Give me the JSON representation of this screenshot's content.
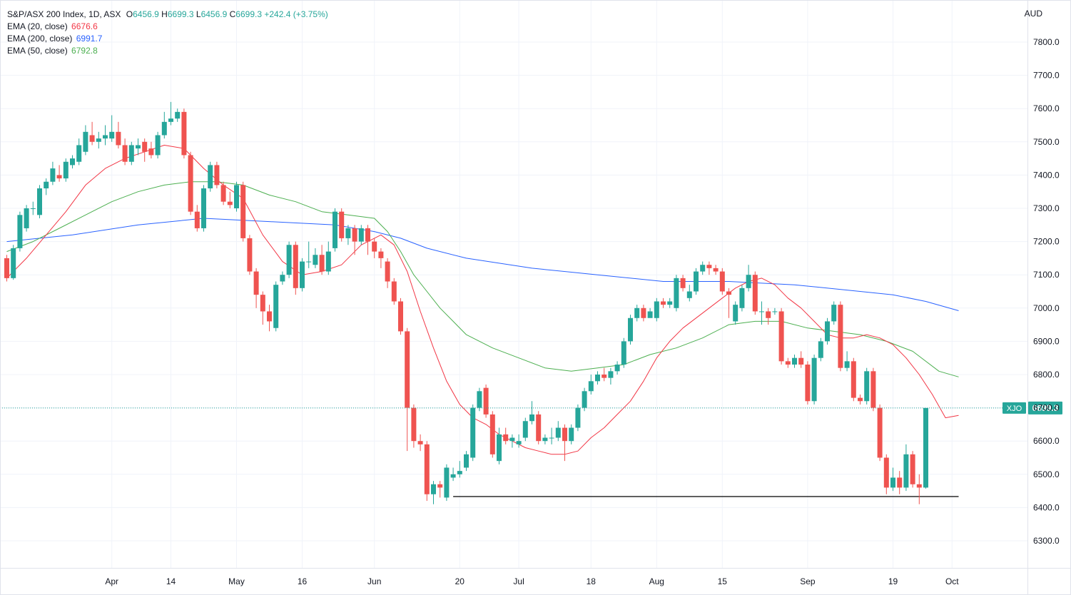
{
  "legend": {
    "symbol": "S&P/ASX 200 Index, 1D, ASX",
    "o_label": "O",
    "o": "6456.9",
    "h_label": "H",
    "h": "6699.3",
    "l_label": "L",
    "l": "6456.9",
    "c_label": "C",
    "c": "6699.3",
    "chg": "+242.4 (+3.75%)",
    "ema20_label": "EMA (20, close)",
    "ema20_value": "6676.6",
    "ema200_label": "EMA (200, close)",
    "ema200_value": "6991.7",
    "ema50_label": "EMA (50, close)",
    "ema50_value": "6792.8"
  },
  "currency": "AUD",
  "colors": {
    "up": "#26a69a",
    "down": "#ef5350",
    "ema20": "#f23645",
    "ema200": "#2962ff",
    "ema50": "#4caf50",
    "grid": "#f0f3fa",
    "price_tag": "#26a69a"
  },
  "chart_data": {
    "type": "candlestick",
    "ylim": [
      6200,
      7850
    ],
    "y_ticks": [
      "7800.0",
      "7700.0",
      "7600.0",
      "7500.0",
      "7400.0",
      "7300.0",
      "7200.0",
      "7100.0",
      "7000.0",
      "6900.0",
      "6800.0",
      "6700.0",
      "6600.0",
      "6500.0",
      "6400.0",
      "6300.0"
    ],
    "x_ticks": [
      {
        "label": "Apr",
        "index": 16
      },
      {
        "label": "14",
        "index": 25
      },
      {
        "label": "May",
        "index": 35
      },
      {
        "label": "16",
        "index": 45
      },
      {
        "label": "Jun",
        "index": 56
      },
      {
        "label": "20",
        "index": 69
      },
      {
        "label": "Jul",
        "index": 78
      },
      {
        "label": "18",
        "index": 89
      },
      {
        "label": "Aug",
        "index": 99
      },
      {
        "label": "15",
        "index": 109
      },
      {
        "label": "Sep",
        "index": 122
      },
      {
        "label": "19",
        "index": 135
      },
      {
        "label": "Oct",
        "index": 144
      }
    ],
    "support_level": 6433,
    "support_from_index": 68,
    "support_to_index": 145,
    "last_price": 6699.3,
    "last_price_label": "XJO",
    "last_price_text": "6699.3",
    "candles": [
      [
        7150,
        7090,
        7160,
        7080
      ],
      [
        7090,
        7180,
        7190,
        7085
      ],
      [
        7180,
        7280,
        7290,
        7170
      ],
      [
        7240,
        7300,
        7310,
        7230
      ],
      [
        7300,
        7300,
        7320,
        7280
      ],
      [
        7280,
        7360,
        7370,
        7270
      ],
      [
        7360,
        7380,
        7390,
        7340
      ],
      [
        7380,
        7420,
        7440,
        7370
      ],
      [
        7400,
        7390,
        7430,
        7380
      ],
      [
        7390,
        7440,
        7450,
        7380
      ],
      [
        7430,
        7450,
        7460,
        7420
      ],
      [
        7440,
        7490,
        7510,
        7430
      ],
      [
        7470,
        7530,
        7550,
        7460
      ],
      [
        7520,
        7500,
        7560,
        7490
      ],
      [
        7500,
        7510,
        7530,
        7480
      ],
      [
        7510,
        7520,
        7550,
        7490
      ],
      [
        7510,
        7530,
        7580,
        7500
      ],
      [
        7530,
        7490,
        7560,
        7480
      ],
      [
        7490,
        7440,
        7510,
        7430
      ],
      [
        7440,
        7490,
        7500,
        7430
      ],
      [
        7480,
        7490,
        7510,
        7460
      ],
      [
        7500,
        7470,
        7510,
        7440
      ],
      [
        7480,
        7460,
        7500,
        7450
      ],
      [
        7460,
        7520,
        7530,
        7450
      ],
      [
        7520,
        7560,
        7590,
        7510
      ],
      [
        7560,
        7570,
        7620,
        7550
      ],
      [
        7570,
        7590,
        7600,
        7560
      ],
      [
        7590,
        7460,
        7600,
        7450
      ],
      [
        7460,
        7290,
        7470,
        7280
      ],
      [
        7290,
        7240,
        7310,
        7230
      ],
      [
        7240,
        7360,
        7370,
        7230
      ],
      [
        7360,
        7430,
        7440,
        7350
      ],
      [
        7430,
        7370,
        7440,
        7360
      ],
      [
        7370,
        7320,
        7380,
        7310
      ],
      [
        7320,
        7310,
        7350,
        7300
      ],
      [
        7300,
        7370,
        7380,
        7290
      ],
      [
        7370,
        7210,
        7380,
        7200
      ],
      [
        7210,
        7110,
        7220,
        7100
      ],
      [
        7110,
        7040,
        7120,
        7000
      ],
      [
        7040,
        6990,
        7050,
        6950
      ],
      [
        6990,
        6960,
        7010,
        6930
      ],
      [
        6940,
        7070,
        7080,
        6930
      ],
      [
        7080,
        7100,
        7110,
        7070
      ],
      [
        7100,
        7190,
        7200,
        7090
      ],
      [
        7190,
        7060,
        7200,
        7040
      ],
      [
        7060,
        7140,
        7150,
        7050
      ],
      [
        7140,
        7140,
        7200,
        7120
      ],
      [
        7130,
        7160,
        7180,
        7120
      ],
      [
        7160,
        7110,
        7190,
        7100
      ],
      [
        7110,
        7170,
        7200,
        7100
      ],
      [
        7180,
        7290,
        7300,
        7170
      ],
      [
        7290,
        7210,
        7300,
        7200
      ],
      [
        7210,
        7240,
        7250,
        7190
      ],
      [
        7240,
        7200,
        7250,
        7160
      ],
      [
        7200,
        7240,
        7250,
        7190
      ],
      [
        7240,
        7200,
        7250,
        7160
      ],
      [
        7200,
        7170,
        7210,
        7150
      ],
      [
        7170,
        7150,
        7180,
        7120
      ],
      [
        7140,
        7080,
        7150,
        7060
      ],
      [
        7080,
        7020,
        7090,
        7010
      ],
      [
        7020,
        6930,
        7030,
        6920
      ],
      [
        6930,
        6700,
        6940,
        6570
      ],
      [
        6700,
        6600,
        6710,
        6580
      ],
      [
        6600,
        6590,
        6620,
        6570
      ],
      [
        6590,
        6440,
        6600,
        6420
      ],
      [
        6440,
        6470,
        6480,
        6410
      ],
      [
        6470,
        6460,
        6480,
        6430
      ],
      [
        6430,
        6520,
        6530,
        6420
      ],
      [
        6490,
        6500,
        6520,
        6480
      ],
      [
        6500,
        6510,
        6540,
        6490
      ],
      [
        6520,
        6560,
        6570,
        6510
      ],
      [
        6550,
        6700,
        6710,
        6540
      ],
      [
        6700,
        6750,
        6760,
        6690
      ],
      [
        6760,
        6680,
        6770,
        6670
      ],
      [
        6680,
        6560,
        6690,
        6550
      ],
      [
        6540,
        6620,
        6640,
        6530
      ],
      [
        6620,
        6600,
        6640,
        6590
      ],
      [
        6600,
        6610,
        6620,
        6580
      ],
      [
        6590,
        6600,
        6620,
        6580
      ],
      [
        6610,
        6660,
        6670,
        6600
      ],
      [
        6660,
        6680,
        6720,
        6650
      ],
      [
        6680,
        6600,
        6690,
        6590
      ],
      [
        6600,
        6610,
        6620,
        6590
      ],
      [
        6610,
        6610,
        6640,
        6590
      ],
      [
        6610,
        6640,
        6660,
        6600
      ],
      [
        6640,
        6600,
        6650,
        6540
      ],
      [
        6600,
        6640,
        6650,
        6590
      ],
      [
        6640,
        6700,
        6710,
        6630
      ],
      [
        6700,
        6750,
        6760,
        6690
      ],
      [
        6750,
        6780,
        6800,
        6740
      ],
      [
        6780,
        6800,
        6810,
        6770
      ],
      [
        6800,
        6790,
        6820,
        6780
      ],
      [
        6790,
        6810,
        6820,
        6770
      ],
      [
        6810,
        6830,
        6840,
        6800
      ],
      [
        6830,
        6900,
        6910,
        6820
      ],
      [
        6900,
        6970,
        6980,
        6890
      ],
      [
        6970,
        7000,
        7010,
        6960
      ],
      [
        7000,
        6970,
        7010,
        6960
      ],
      [
        6970,
        6990,
        7000,
        6980
      ],
      [
        6970,
        7020,
        7030,
        6960
      ],
      [
        7020,
        7010,
        7030,
        7000
      ],
      [
        7010,
        7020,
        7030,
        7000
      ],
      [
        7000,
        7090,
        7100,
        6990
      ],
      [
        7090,
        7060,
        7100,
        7050
      ],
      [
        7030,
        7050,
        7070,
        7020
      ],
      [
        7050,
        7110,
        7120,
        7040
      ],
      [
        7110,
        7130,
        7140,
        7100
      ],
      [
        7130,
        7120,
        7140,
        7100
      ],
      [
        7120,
        7110,
        7130,
        7100
      ],
      [
        7110,
        7050,
        7120,
        7040
      ],
      [
        7050,
        7040,
        7060,
        6970
      ],
      [
        6960,
        7010,
        7020,
        6950
      ],
      [
        7000,
        7060,
        7070,
        6990
      ],
      [
        7060,
        7100,
        7130,
        7050
      ],
      [
        7100,
        6990,
        7110,
        6980
      ],
      [
        6990,
        6990,
        7020,
        6950
      ],
      [
        6990,
        6970,
        7000,
        6950
      ],
      [
        6990,
        6990,
        7000,
        6980
      ],
      [
        6990,
        6840,
        7000,
        6830
      ],
      [
        6840,
        6830,
        6850,
        6820
      ],
      [
        6830,
        6850,
        6860,
        6820
      ],
      [
        6850,
        6830,
        6870,
        6820
      ],
      [
        6830,
        6720,
        6840,
        6710
      ],
      [
        6720,
        6850,
        6860,
        6710
      ],
      [
        6850,
        6900,
        6910,
        6840
      ],
      [
        6900,
        6960,
        6970,
        6890
      ],
      [
        6960,
        7010,
        7020,
        6950
      ],
      [
        7010,
        6820,
        7020,
        6810
      ],
      [
        6820,
        6840,
        6870,
        6810
      ],
      [
        6840,
        6730,
        6850,
        6720
      ],
      [
        6730,
        6720,
        6740,
        6710
      ],
      [
        6720,
        6810,
        6820,
        6710
      ],
      [
        6810,
        6700,
        6820,
        6690
      ],
      [
        6700,
        6550,
        6710,
        6540
      ],
      [
        6550,
        6460,
        6560,
        6440
      ],
      [
        6460,
        6490,
        6520,
        6450
      ],
      [
        6490,
        6460,
        6510,
        6440
      ],
      [
        6460,
        6560,
        6590,
        6450
      ],
      [
        6560,
        6470,
        6570,
        6460
      ],
      [
        6470,
        6460,
        6500,
        6410
      ],
      [
        6460,
        6699.3,
        6699.3,
        6456.9
      ]
    ],
    "ema20": [
      [
        0,
        7090
      ],
      [
        3,
        7150
      ],
      [
        6,
        7220
      ],
      [
        9,
        7290
      ],
      [
        12,
        7370
      ],
      [
        15,
        7420
      ],
      [
        18,
        7450
      ],
      [
        21,
        7470
      ],
      [
        24,
        7490
      ],
      [
        27,
        7480
      ],
      [
        30,
        7420
      ],
      [
        33,
        7370
      ],
      [
        36,
        7330
      ],
      [
        39,
        7220
      ],
      [
        42,
        7140
      ],
      [
        45,
        7100
      ],
      [
        48,
        7110
      ],
      [
        51,
        7130
      ],
      [
        54,
        7190
      ],
      [
        57,
        7220
      ],
      [
        59,
        7190
      ],
      [
        61,
        7110
      ],
      [
        63,
        6990
      ],
      [
        65,
        6880
      ],
      [
        67,
        6780
      ],
      [
        69,
        6710
      ],
      [
        71,
        6670
      ],
      [
        73,
        6650
      ],
      [
        75,
        6620
      ],
      [
        77,
        6600
      ],
      [
        79,
        6580
      ],
      [
        81,
        6570
      ],
      [
        83,
        6560
      ],
      [
        85,
        6560
      ],
      [
        87,
        6570
      ],
      [
        89,
        6610
      ],
      [
        91,
        6640
      ],
      [
        93,
        6680
      ],
      [
        95,
        6720
      ],
      [
        97,
        6780
      ],
      [
        99,
        6850
      ],
      [
        101,
        6900
      ],
      [
        103,
        6940
      ],
      [
        105,
        6970
      ],
      [
        107,
        7000
      ],
      [
        109,
        7030
      ],
      [
        111,
        7060
      ],
      [
        113,
        7080
      ],
      [
        115,
        7090
      ],
      [
        117,
        7070
      ],
      [
        119,
        7030
      ],
      [
        121,
        7000
      ],
      [
        123,
        6960
      ],
      [
        125,
        6920
      ],
      [
        127,
        6910
      ],
      [
        129,
        6910
      ],
      [
        131,
        6920
      ],
      [
        133,
        6910
      ],
      [
        135,
        6890
      ],
      [
        137,
        6850
      ],
      [
        139,
        6800
      ],
      [
        141,
        6740
      ],
      [
        143,
        6670
      ],
      [
        145,
        6677
      ]
    ],
    "ema50": [
      [
        0,
        7170
      ],
      [
        4,
        7200
      ],
      [
        8,
        7240
      ],
      [
        12,
        7280
      ],
      [
        16,
        7320
      ],
      [
        20,
        7350
      ],
      [
        24,
        7370
      ],
      [
        28,
        7380
      ],
      [
        32,
        7380
      ],
      [
        36,
        7370
      ],
      [
        40,
        7340
      ],
      [
        44,
        7320
      ],
      [
        48,
        7290
      ],
      [
        52,
        7280
      ],
      [
        56,
        7270
      ],
      [
        58,
        7230
      ],
      [
        60,
        7170
      ],
      [
        62,
        7100
      ],
      [
        64,
        7050
      ],
      [
        66,
        7000
      ],
      [
        68,
        6960
      ],
      [
        70,
        6920
      ],
      [
        74,
        6880
      ],
      [
        78,
        6850
      ],
      [
        82,
        6820
      ],
      [
        86,
        6810
      ],
      [
        90,
        6820
      ],
      [
        94,
        6830
      ],
      [
        98,
        6860
      ],
      [
        102,
        6880
      ],
      [
        106,
        6910
      ],
      [
        110,
        6950
      ],
      [
        114,
        6960
      ],
      [
        118,
        6960
      ],
      [
        122,
        6940
      ],
      [
        126,
        6930
      ],
      [
        130,
        6920
      ],
      [
        134,
        6900
      ],
      [
        138,
        6870
      ],
      [
        142,
        6810
      ],
      [
        145,
        6793
      ]
    ],
    "ema200": [
      [
        0,
        7200
      ],
      [
        10,
        7220
      ],
      [
        20,
        7250
      ],
      [
        30,
        7270
      ],
      [
        40,
        7260
      ],
      [
        50,
        7250
      ],
      [
        56,
        7230
      ],
      [
        60,
        7210
      ],
      [
        64,
        7180
      ],
      [
        70,
        7150
      ],
      [
        80,
        7120
      ],
      [
        90,
        7100
      ],
      [
        100,
        7080
      ],
      [
        110,
        7080
      ],
      [
        120,
        7070
      ],
      [
        130,
        7050
      ],
      [
        135,
        7040
      ],
      [
        140,
        7020
      ],
      [
        145,
        6992
      ]
    ]
  }
}
